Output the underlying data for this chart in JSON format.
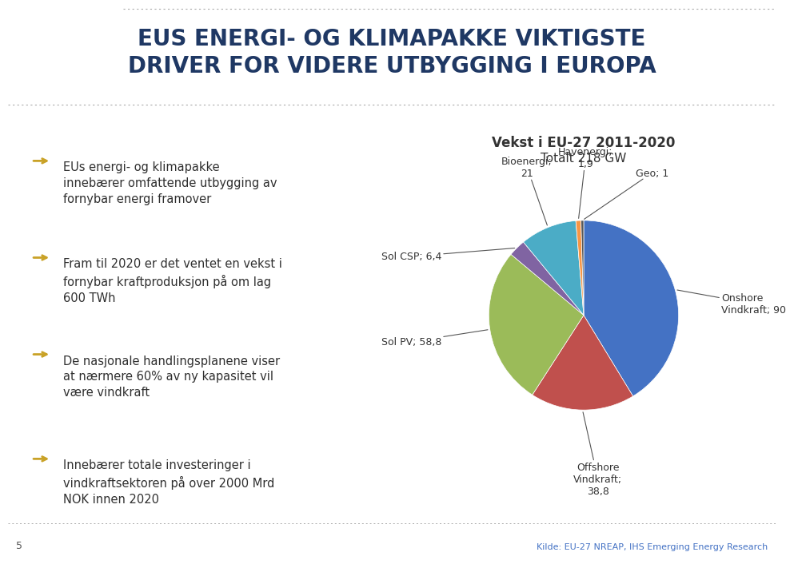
{
  "title_line1": "EUS ENERGI- OG KLIMAPAKKE VIKTIGSTE",
  "title_line2": "DRIVER FOR VIDERE UTBYGGING I EUROPA",
  "title_color": "#1F3864",
  "bullet_color": "#C9A227",
  "bullet_points": [
    "EUs energi- og klimapakke\ninnebærer omfattende utbygging av\nfornybar energi framover",
    "Fram til 2020 er det ventet en vekst i\nfornybar kraftproduksjon på om lag\n600 TWh",
    "De nasjonale handlingsplanene viser\nat nærmere 60% av ny kapasitet vil\nvære vindkraft",
    "Innebærer totale investeringer i\nvindkraftsektoren på over 2000 Mrd\nNOK innen 2020"
  ],
  "pie_title_line1": "Vekst i EU-27 2011-2020",
  "pie_title_line2": "Totalt 218 GW",
  "pie_labels": [
    "Onshore\nVindkraft",
    "Offshore\nVindkraft",
    "Sol PV",
    "Sol CSP",
    "Bioenergi",
    "Havenergi",
    "Geo"
  ],
  "pie_values": [
    90,
    38.8,
    58.8,
    6.4,
    21,
    1.9,
    1
  ],
  "pie_label_values": [
    "90",
    "38,8",
    "58,8",
    "6,4",
    "21",
    "1,9",
    "1"
  ],
  "pie_colors": [
    "#4472C4",
    "#C0504D",
    "#9BBB59",
    "#8064A2",
    "#4BACC6",
    "#F79646",
    "#595959"
  ],
  "footer_number": "5",
  "footer_source": "Kilde: EU-27 NREAP, IHS Emerging Energy Research",
  "background_color": "#FFFFFF",
  "text_color": "#404040"
}
